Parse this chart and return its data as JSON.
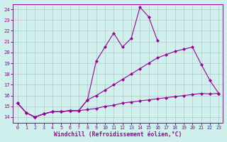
{
  "x_all": [
    0,
    1,
    2,
    3,
    4,
    5,
    6,
    7,
    8,
    9,
    10,
    11,
    12,
    13,
    14,
    15,
    16,
    17,
    18,
    19,
    20,
    21,
    22,
    23
  ],
  "line1_y": [
    15.3,
    14.4,
    14.0,
    14.3,
    14.5,
    14.5,
    14.6,
    14.6,
    15.6,
    19.2,
    20.5,
    21.8,
    20.5,
    21.3,
    24.2,
    23.3,
    21.1,
    null,
    null,
    null,
    null,
    null,
    null,
    null
  ],
  "line2_y": [
    15.3,
    14.4,
    14.0,
    14.3,
    14.5,
    14.5,
    14.6,
    14.6,
    15.6,
    16.0,
    16.5,
    17.0,
    17.5,
    18.0,
    18.5,
    19.0,
    19.5,
    19.8,
    20.1,
    20.3,
    20.5,
    18.9,
    17.4,
    16.2
  ],
  "line3_y": [
    15.3,
    14.4,
    14.0,
    14.3,
    14.5,
    14.5,
    14.6,
    14.6,
    14.7,
    14.8,
    15.0,
    15.1,
    15.3,
    15.4,
    15.5,
    15.6,
    15.7,
    15.8,
    15.9,
    16.0,
    16.1,
    16.2,
    16.15,
    16.2
  ],
  "color": "#990099",
  "bg_color": "#cff0ec",
  "grid_color": "#b0b0b0",
  "xlabel": "Windchill (Refroidissement éolien,°C)",
  "xlim": [
    -0.5,
    23.5
  ],
  "ylim": [
    13.5,
    24.5
  ],
  "yticks": [
    14,
    15,
    16,
    17,
    18,
    19,
    20,
    21,
    22,
    23,
    24
  ],
  "xticks": [
    0,
    1,
    2,
    3,
    4,
    5,
    6,
    7,
    8,
    9,
    10,
    11,
    12,
    13,
    14,
    15,
    16,
    17,
    18,
    19,
    20,
    21,
    22,
    23
  ]
}
